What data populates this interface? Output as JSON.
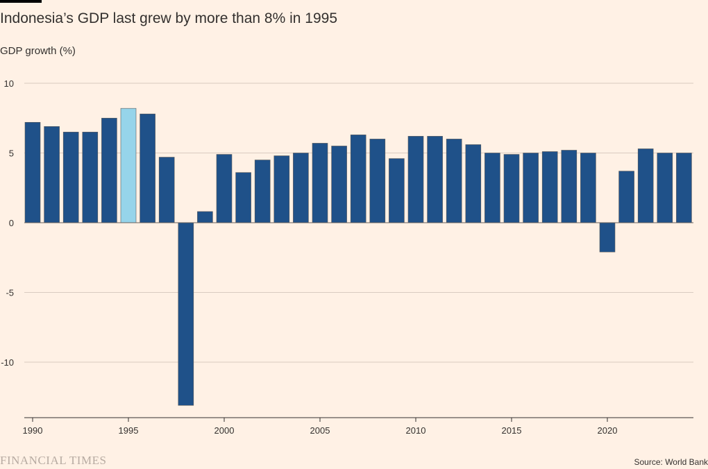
{
  "header": {
    "title": "Indonesia’s GDP last grew by more than 8% in 1995",
    "subtitle": "GDP growth (%)"
  },
  "footer": {
    "brand": "FINANCIAL TIMES",
    "source": "Source: World Bank"
  },
  "colors": {
    "background": "#fff1e5",
    "bar": "#1f5189",
    "highlight": "#96d4ea",
    "grid": "#d9cbc0",
    "axis": "#33302e"
  },
  "chart_data": {
    "type": "bar",
    "title": "Indonesia’s GDP last grew by more than 8% in 1995",
    "ylabel": "GDP growth (%)",
    "xlabel": "",
    "ylim": [
      -14,
      10
    ],
    "yticks": [
      10,
      5,
      0,
      -5,
      -10
    ],
    "xticks": [
      "1990",
      "1995",
      "2000",
      "2005",
      "2010",
      "2015",
      "2020"
    ],
    "grid": true,
    "highlight_category": "1995",
    "categories": [
      "1990",
      "1991",
      "1992",
      "1993",
      "1994",
      "1995",
      "1996",
      "1997",
      "1998",
      "1999",
      "2000",
      "2001",
      "2002",
      "2003",
      "2004",
      "2005",
      "2006",
      "2007",
      "2008",
      "2009",
      "2010",
      "2011",
      "2012",
      "2013",
      "2014",
      "2015",
      "2016",
      "2017",
      "2018",
      "2019",
      "2020",
      "2021",
      "2022",
      "2023",
      "2024"
    ],
    "values": [
      7.2,
      6.9,
      6.5,
      6.5,
      7.5,
      8.2,
      7.8,
      4.7,
      -13.1,
      0.8,
      4.9,
      3.6,
      4.5,
      4.8,
      5.0,
      5.7,
      5.5,
      6.3,
      6.0,
      4.6,
      6.2,
      6.2,
      6.0,
      5.6,
      5.0,
      4.9,
      5.0,
      5.1,
      5.2,
      5.0,
      -2.1,
      3.7,
      5.3,
      5.0,
      5.0
    ]
  }
}
